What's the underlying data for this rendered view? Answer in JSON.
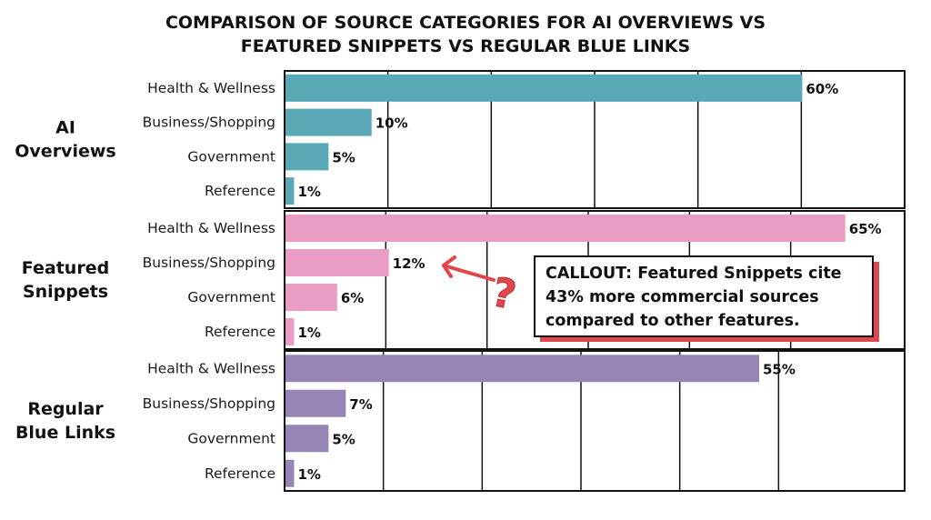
{
  "chart_data": {
    "type": "bar",
    "orientation": "horizontal",
    "title": "COMPARISON OF SOURCE CATEGORIES FOR AI OVERVIEWS VS FEATURED SNIPPETS VS REGULAR BLUE LINKS",
    "title_lines": [
      "COMPARISON OF SOURCE CATEGORIES FOR AI OVERVIEWS VS",
      "FEATURED SNIPPETS VS REGULAR BLUE LINKS"
    ],
    "categories": [
      "Health & Wellness",
      "Business/Shopping",
      "Government",
      "Reference"
    ],
    "value_suffix": "%",
    "xlim": [
      0,
      72
    ],
    "grid": true,
    "groups": [
      {
        "name": "AI Overviews",
        "name_lines": [
          "AI",
          "Overviews"
        ],
        "color": "#5ba8b7",
        "values": [
          60,
          10,
          5,
          1
        ]
      },
      {
        "name": "Featured Snippets",
        "name_lines": [
          "Featured",
          "Snippets"
        ],
        "color": "#e99cc4",
        "values": [
          65,
          12,
          6,
          1
        ]
      },
      {
        "name": "Regular Blue Links",
        "name_lines": [
          "Regular",
          "Blue Links"
        ],
        "color": "#9685b5",
        "values": [
          55,
          7,
          5,
          1
        ]
      }
    ],
    "annotation": {
      "text_lines": [
        "CALLOUT: Featured Snippets cite",
        "43% more commercial sources",
        "compared to other features."
      ],
      "target": "Featured Snippets - Business/Shopping",
      "accent_color": "#e0474c"
    }
  }
}
